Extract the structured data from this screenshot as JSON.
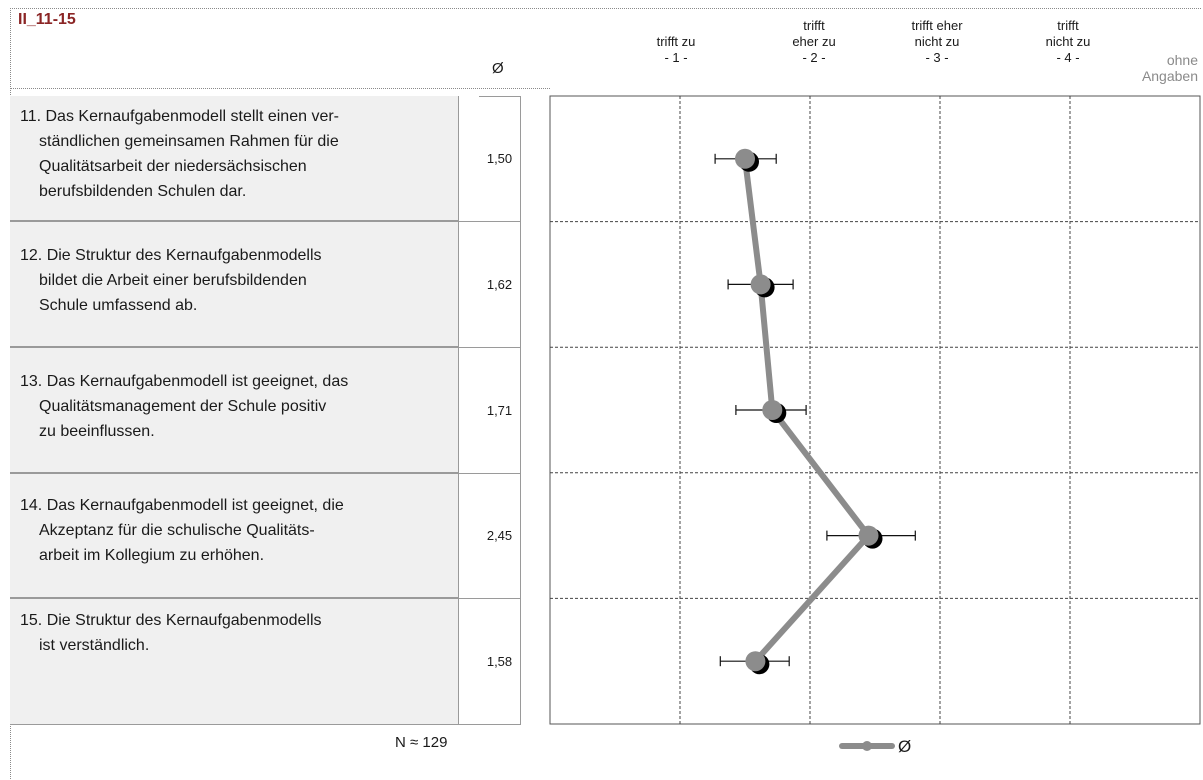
{
  "code": "II_11-15",
  "avg_header": "Ø",
  "scale_headers": [
    {
      "lines": [
        "trifft zu",
        "- 1 -"
      ]
    },
    {
      "lines": [
        "trifft",
        "eher zu",
        "- 2 -"
      ]
    },
    {
      "lines": [
        "trifft eher",
        "nicht zu",
        "- 3 -"
      ]
    },
    {
      "lines": [
        "trifft",
        "nicht zu",
        "- 4 -"
      ]
    },
    {
      "lines": [
        "ohne",
        "Angaben"
      ]
    }
  ],
  "items": [
    {
      "lines": [
        "11. Das Kernaufgabenmodell stellt einen ver-",
        "     ständlichen gemeinsamen Rahmen für die",
        "     Qualitätsarbeit der niedersächsischen",
        "     berufsbildenden Schulen dar."
      ],
      "avg_label": "1,50"
    },
    {
      "lines": [
        "12. Die Struktur des Kernaufgabenmodells",
        "     bildet die Arbeit einer berufsbildenden",
        "     Schule umfassend ab."
      ],
      "avg_label": "1,62"
    },
    {
      "lines": [
        "13. Das Kernaufgabenmodell ist geeignet, das",
        "     Qualitätsmanagement der Schule positiv",
        "     zu beeinflussen."
      ],
      "avg_label": "1,71"
    },
    {
      "lines": [
        "14. Das Kernaufgabenmodell ist geeignet, die",
        "     Akzeptanz für die schulische Qualitäts-",
        "     arbeit im Kollegium zu erhöhen."
      ],
      "avg_label": "2,45"
    },
    {
      "lines": [
        "",
        "15. Die Struktur des Kernaufgabenmodells",
        "     ist verständlich."
      ],
      "avg_label": "1,58"
    }
  ],
  "n_note": "N ≈ 129",
  "legend_label": "Ø",
  "colors": {
    "line": "#8c8c8c",
    "marker_shadow": "#000000",
    "code": "#8b2525"
  },
  "chart_data": {
    "type": "line",
    "orientation": "horizontal",
    "categories": [
      "11",
      "12",
      "13",
      "14",
      "15"
    ],
    "series": [
      {
        "name": "Ø",
        "values": [
          1.5,
          1.62,
          1.71,
          2.45,
          1.58
        ],
        "error_low": [
          1.27,
          1.37,
          1.43,
          2.13,
          1.31
        ],
        "error_high": [
          1.74,
          1.87,
          1.97,
          2.81,
          1.84
        ]
      }
    ],
    "xlim": [
      0,
      5
    ],
    "x_ticks": [
      "",
      "1",
      "2",
      "3",
      "4"
    ],
    "grid": true,
    "legend": "bottom"
  }
}
